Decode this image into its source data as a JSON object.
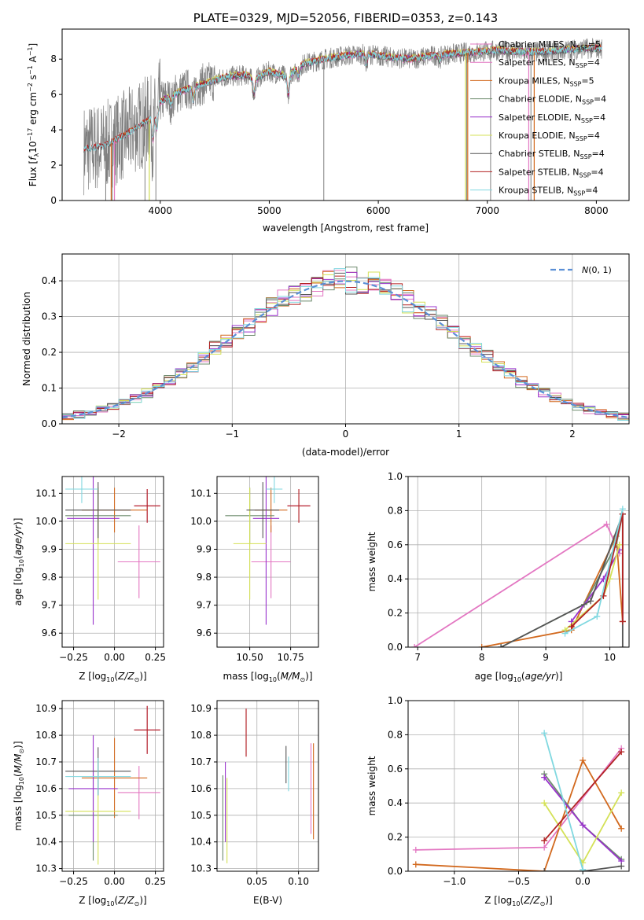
{
  "colors": {
    "Chabrier MILES": "#e377c2",
    "Salpeter MILES": "#e377c2",
    "Kroupa MILES": "#d2691e",
    "Chabrier ELODIE": "#6e8b6e",
    "Salpeter ELODIE": "#9932cc",
    "Kroupa ELODIE": "#d4e157",
    "Chabrier STELIB": "#555555",
    "Salpeter STELIB": "#b22222",
    "Kroupa STELIB": "#80d8e0",
    "data": "#808080",
    "normal": "#5b8fd6"
  },
  "chart_data": [
    {
      "id": "spectrum",
      "type": "line",
      "title": "PLATE=0329, MJD=52056, FIBERID=0353, z=0.143",
      "xlabel": "wavelength [Angstrom, rest frame]",
      "ylabel": "Flux [f_λ 10^-17 erg cm^-2 s^-1 A^-1]",
      "xlim": [
        3100,
        8300
      ],
      "ylim": [
        0,
        9.7
      ],
      "xticks": [
        "4000",
        "5000",
        "6000",
        "7000",
        "8000"
      ],
      "yticks": [
        "0",
        "2",
        "4",
        "6",
        "8"
      ],
      "legend_position": "top-right",
      "legend": [
        {
          "label": "Chabrier MILES, N_SSP=5",
          "base": "Chabrier MILES",
          "sub": "SSP",
          "tail": "=5"
        },
        {
          "label": "Salpeter MILES, N_SSP=4",
          "base": "Salpeter MILES",
          "sub": "SSP",
          "tail": "=4"
        },
        {
          "label": "Kroupa MILES, N_SSP=5",
          "base": "Kroupa MILES",
          "sub": "SSP",
          "tail": "=5"
        },
        {
          "label": "Chabrier ELODIE, N_SSP=4",
          "base": "Chabrier ELODIE",
          "sub": "SSP",
          "tail": "=4"
        },
        {
          "label": "Salpeter ELODIE, N_SSP=4",
          "base": "Salpeter ELODIE",
          "sub": "SSP",
          "tail": "=4"
        },
        {
          "label": "Kroupa ELODIE, N_SSP=4",
          "base": "Kroupa ELODIE",
          "sub": "SSP",
          "tail": "=4"
        },
        {
          "label": "Chabrier STELIB, N_SSP=4",
          "base": "Chabrier STELIB",
          "sub": "SSP",
          "tail": "=4"
        },
        {
          "label": "Salpeter STELIB, N_SSP=4",
          "base": "Salpeter STELIB",
          "sub": "SSP",
          "tail": "=4"
        },
        {
          "label": "Kroupa STELIB, N_SSP=4",
          "base": "Kroupa STELIB",
          "sub": "SSP",
          "tail": "=4"
        }
      ],
      "continuum": {
        "x": [
          3300,
          3500,
          3700,
          3900,
          4000,
          4200,
          4400,
          4600,
          4800,
          4850,
          5000,
          5170,
          5300,
          5500,
          5700,
          5900,
          6100,
          6300,
          6500,
          6700,
          6900,
          7100,
          7300,
          7500,
          7700,
          7900,
          8050
        ],
        "y": [
          2.9,
          3.1,
          3.8,
          4.6,
          5.6,
          6.2,
          6.6,
          7.0,
          7.1,
          6.8,
          7.3,
          7.0,
          7.7,
          8.0,
          8.2,
          8.3,
          8.1,
          8.0,
          8.2,
          8.3,
          8.4,
          8.5,
          8.4,
          8.4,
          8.5,
          8.6,
          8.6
        ]
      },
      "dips": [
        {
          "x": 3934,
          "depth": 1.5
        },
        {
          "x": 3969,
          "depth": 1.2
        },
        {
          "x": 4101,
          "depth": 0.5
        },
        {
          "x": 4304,
          "depth": 0.8
        },
        {
          "x": 4861,
          "depth": 0.8
        },
        {
          "x": 5175,
          "depth": 1.0
        },
        {
          "x": 5270,
          "depth": 0.5
        },
        {
          "x": 5890,
          "depth": 0.6
        },
        {
          "x": 6563,
          "depth": 0.3
        }
      ],
      "data_drop_lines": [
        3500,
        3560,
        3860,
        3900,
        3960,
        5500,
        6810,
        7030,
        7400
      ],
      "model_drop_lines": [
        {
          "model": "Kroupa MILES",
          "x": [
            3550,
            6820,
            7430
          ]
        },
        {
          "model": "Kroupa ELODIE",
          "x": [
            3900,
            6800
          ]
        },
        {
          "model": "Chabrier MILES",
          "x": [
            3580,
            7380
          ]
        }
      ]
    },
    {
      "id": "residuals",
      "type": "histogram",
      "xlabel": "(data-model)/error",
      "ylabel": "Normed distribution",
      "xlim": [
        -2.5,
        2.5
      ],
      "ylim": [
        0,
        0.475
      ],
      "xticks": [
        "−2",
        "−1",
        "0",
        "1",
        "2"
      ],
      "yticks": [
        "0.0",
        "0.1",
        "0.2",
        "0.3",
        "0.4"
      ],
      "grid": true,
      "legend_position": "top-right",
      "normal_curve": {
        "label": "N(0,1)",
        "mean": 0,
        "sigma": 1
      },
      "bin_width": 0.1,
      "jitter": [
        0.03,
        -0.02,
        0.04,
        -0.05,
        0.01,
        0.05,
        -0.03,
        0.02,
        -0.04,
        0.06,
        -0.01,
        0.03,
        -0.06,
        0.02,
        0.05,
        -0.02,
        0.04,
        -0.05,
        0.03,
        -0.03,
        0.01,
        0.06,
        -0.04,
        0.02
      ]
    },
    {
      "id": "age-vs-Z",
      "type": "errorbar",
      "xlabel": "Z [log10(Z/Z☉)]",
      "ylabel": "age [log10(age/yr)]",
      "xlim": [
        -0.32,
        0.3
      ],
      "ylim": [
        9.55,
        10.16
      ],
      "xticks": [
        "−0.25",
        "0.00",
        "0.25"
      ],
      "yticks": [
        "9.6",
        "9.7",
        "9.8",
        "9.9",
        "10.0",
        "10.1"
      ],
      "grid": true,
      "points": [
        {
          "model": "Chabrier MILES",
          "x": 0.15,
          "y": 9.855,
          "dx": 0.13,
          "dy": 0.13
        },
        {
          "model": "Salpeter MILES",
          "x": 0.2,
          "y": 10.055,
          "dx": 0.08,
          "dy": 0.06
        },
        {
          "model": "Kroupa MILES",
          "x": 0.0,
          "y": 10.04,
          "dx": 0.2,
          "dy": 0.08
        },
        {
          "model": "Chabrier ELODIE",
          "x": -0.1,
          "y": 10.02,
          "dx": 0.2,
          "dy": 0.1
        },
        {
          "model": "Salpeter ELODIE",
          "x": -0.13,
          "y": 10.01,
          "dx": 0.16,
          "dy": 0.38
        },
        {
          "model": "Kroupa ELODIE",
          "x": -0.1,
          "y": 9.92,
          "dx": 0.2,
          "dy": 0.2
        },
        {
          "model": "Chabrier STELIB",
          "x": -0.1,
          "y": 10.04,
          "dx": 0.2,
          "dy": 0.1
        },
        {
          "model": "Salpeter STELIB",
          "x": 0.2,
          "y": 10.055,
          "dx": 0.08,
          "dy": 0.06
        },
        {
          "model": "Kroupa STELIB",
          "x": -0.2,
          "y": 10.115,
          "dx": 0.1,
          "dy": 0.05
        }
      ]
    },
    {
      "id": "age-vs-mass",
      "type": "errorbar",
      "xlabel": "mass [log10(M/M☉)]",
      "ylabel": "",
      "xlim": [
        10.3,
        10.92
      ],
      "ylim": [
        9.55,
        10.16
      ],
      "xticks": [
        "10.50",
        "10.75"
      ],
      "yticks": [
        "9.6",
        "9.7",
        "9.8",
        "9.9",
        "10.0",
        "10.1"
      ],
      "grid": true,
      "points": [
        {
          "model": "Chabrier MILES",
          "x": 10.63,
          "y": 9.855,
          "dx": 0.12,
          "dy": 0.13
        },
        {
          "model": "Salpeter MILES",
          "x": 10.8,
          "y": 10.055,
          "dx": 0.07,
          "dy": 0.06
        },
        {
          "model": "Kroupa MILES",
          "x": 10.63,
          "y": 10.04,
          "dx": 0.1,
          "dy": 0.08
        },
        {
          "model": "Chabrier ELODIE",
          "x": 10.5,
          "y": 10.02,
          "dx": 0.15,
          "dy": 0.1
        },
        {
          "model": "Salpeter ELODIE",
          "x": 10.6,
          "y": 10.01,
          "dx": 0.08,
          "dy": 0.38
        },
        {
          "model": "Kroupa ELODIE",
          "x": 10.5,
          "y": 9.92,
          "dx": 0.1,
          "dy": 0.2
        },
        {
          "model": "Chabrier STELIB",
          "x": 10.58,
          "y": 10.04,
          "dx": 0.1,
          "dy": 0.1
        },
        {
          "model": "Salpeter STELIB",
          "x": 10.8,
          "y": 10.055,
          "dx": 0.07,
          "dy": 0.06
        },
        {
          "model": "Kroupa STELIB",
          "x": 10.65,
          "y": 10.115,
          "dx": 0.05,
          "dy": 0.05
        }
      ]
    },
    {
      "id": "massweight-vs-age",
      "type": "line",
      "xlabel": "age [log10(age/yr)]",
      "ylabel": "mass weight",
      "xlim": [
        6.85,
        10.3
      ],
      "ylim": [
        0,
        1.0
      ],
      "xticks": [
        "7",
        "8",
        "9",
        "10"
      ],
      "yticks": [
        "0.0",
        "0.2",
        "0.4",
        "0.6",
        "0.8",
        "1.0"
      ],
      "grid": true,
      "series": [
        {
          "model": "Chabrier MILES",
          "x": [
            6.95,
            9.95,
            10.15
          ],
          "y": [
            0.0,
            0.72,
            0.55
          ]
        },
        {
          "model": "Kroupa MILES",
          "x": [
            8.0,
            9.4,
            10.1,
            10.2
          ],
          "y": [
            0.0,
            0.1,
            0.65,
            0.15
          ]
        },
        {
          "model": "Chabrier ELODIE",
          "x": [
            8.3,
            9.6,
            10.1,
            10.2
          ],
          "y": [
            0.0,
            0.25,
            0.6,
            0.78
          ]
        },
        {
          "model": "Salpeter ELODIE",
          "x": [
            9.4,
            9.9,
            10.15
          ],
          "y": [
            0.15,
            0.4,
            0.57
          ]
        },
        {
          "model": "Kroupa ELODIE",
          "x": [
            9.3,
            9.9,
            10.0,
            10.15
          ],
          "y": [
            0.1,
            0.3,
            0.4,
            0.6
          ]
        },
        {
          "model": "Chabrier STELIB",
          "x": [
            8.3,
            9.7,
            10.2,
            10.2
          ],
          "y": [
            0.0,
            0.27,
            0.78,
            0.0
          ]
        },
        {
          "model": "Salpeter STELIB",
          "x": [
            9.4,
            9.9,
            10.2,
            10.2
          ],
          "y": [
            0.12,
            0.3,
            0.78,
            0.15
          ]
        },
        {
          "model": "Kroupa STELIB",
          "x": [
            9.3,
            9.8,
            10.2
          ],
          "y": [
            0.08,
            0.18,
            0.81
          ]
        }
      ]
    },
    {
      "id": "mass-vs-Z",
      "type": "errorbar",
      "xlabel": "Z [log10(Z/Z☉)]",
      "ylabel": "mass [log10(M/M☉)]",
      "xlim": [
        -0.32,
        0.3
      ],
      "ylim": [
        10.29,
        10.93
      ],
      "xticks": [
        "−0.25",
        "0.00",
        "0.25"
      ],
      "yticks": [
        "10.3",
        "10.4",
        "10.5",
        "10.6",
        "10.7",
        "10.8",
        "10.9"
      ],
      "grid": true,
      "points": [
        {
          "model": "Chabrier MILES",
          "x": 0.15,
          "y": 10.585,
          "dx": 0.13,
          "dy": 0.1
        },
        {
          "model": "Salpeter MILES",
          "x": 0.2,
          "y": 10.82,
          "dx": 0.08,
          "dy": 0.09
        },
        {
          "model": "Kroupa MILES",
          "x": 0.0,
          "y": 10.64,
          "dx": 0.2,
          "dy": 0.15
        },
        {
          "model": "Chabrier ELODIE",
          "x": -0.13,
          "y": 10.5,
          "dx": 0.15,
          "dy": 0.17
        },
        {
          "model": "Salpeter ELODIE",
          "x": -0.13,
          "y": 10.6,
          "dx": 0.15,
          "dy": 0.2
        },
        {
          "model": "Kroupa ELODIE",
          "x": -0.1,
          "y": 10.515,
          "dx": 0.2,
          "dy": 0.2
        },
        {
          "model": "Chabrier STELIB",
          "x": -0.1,
          "y": 10.665,
          "dx": 0.2,
          "dy": 0.09
        },
        {
          "model": "Salpeter STELIB",
          "x": 0.2,
          "y": 10.82,
          "dx": 0.08,
          "dy": 0.09
        },
        {
          "model": "Kroupa STELIB",
          "x": -0.1,
          "y": 10.645,
          "dx": 0.2,
          "dy": 0.07
        }
      ]
    },
    {
      "id": "mass-vs-ebv",
      "type": "errorbar",
      "xlabel": "E(B-V)",
      "ylabel": "",
      "xlim": [
        0.002,
        0.124
      ],
      "ylim": [
        10.29,
        10.93
      ],
      "xticks": [
        "0.05",
        "0.10"
      ],
      "yticks": [
        "10.3",
        "10.4",
        "10.5",
        "10.6",
        "10.7",
        "10.8",
        "10.9"
      ],
      "grid": true,
      "points": [
        {
          "model": "Chabrier MILES",
          "x": 0.115,
          "y": 10.6,
          "dx": 0,
          "dy": 0.17
        },
        {
          "model": "Salpeter MILES",
          "x": 0.037,
          "y": 10.81,
          "dx": 0,
          "dy": 0.09
        },
        {
          "model": "Kroupa MILES",
          "x": 0.118,
          "y": 10.59,
          "dx": 0,
          "dy": 0.18
        },
        {
          "model": "Chabrier ELODIE",
          "x": 0.009,
          "y": 10.49,
          "dx": 0,
          "dy": 0.16
        },
        {
          "model": "Salpeter ELODIE",
          "x": 0.012,
          "y": 10.55,
          "dx": 0,
          "dy": 0.15
        },
        {
          "model": "Kroupa ELODIE",
          "x": 0.014,
          "y": 10.48,
          "dx": 0,
          "dy": 0.16
        },
        {
          "model": "Chabrier STELIB",
          "x": 0.085,
          "y": 10.69,
          "dx": 0,
          "dy": 0.07
        },
        {
          "model": "Salpeter STELIB",
          "x": 0.037,
          "y": 10.81,
          "dx": 0,
          "dy": 0.09
        },
        {
          "model": "Kroupa STELIB",
          "x": 0.088,
          "y": 10.655,
          "dx": 0,
          "dy": 0.065
        }
      ]
    },
    {
      "id": "massweight-vs-Z",
      "type": "line",
      "xlabel": "Z [log10(Z/Z☉)]",
      "ylabel": "mass weight",
      "xlim": [
        -1.36,
        0.36
      ],
      "ylim": [
        0,
        1.0
      ],
      "xticks": [
        "−1.0",
        "−0.5",
        "0.0"
      ],
      "yticks": [
        "0.0",
        "0.2",
        "0.4",
        "0.6",
        "0.8",
        "1.0"
      ],
      "grid": true,
      "series": [
        {
          "model": "Chabrier MILES",
          "x": [
            -1.3,
            -0.3,
            0.3
          ],
          "y": [
            0.125,
            0.14,
            0.72
          ]
        },
        {
          "model": "Kroupa MILES",
          "x": [
            -1.3,
            -0.3,
            0.0,
            0.3
          ],
          "y": [
            0.04,
            0.0,
            0.65,
            0.25
          ]
        },
        {
          "model": "Chabrier ELODIE",
          "x": [
            -0.3,
            0.0,
            0.3
          ],
          "y": [
            0.57,
            0.27,
            0.07
          ]
        },
        {
          "model": "Salpeter ELODIE",
          "x": [
            -0.3,
            0.0,
            0.3
          ],
          "y": [
            0.55,
            0.27,
            0.06
          ]
        },
        {
          "model": "Kroupa ELODIE",
          "x": [
            -0.3,
            0.0,
            0.3
          ],
          "y": [
            0.4,
            0.05,
            0.46
          ]
        },
        {
          "model": "Chabrier STELIB",
          "x": [
            -0.3,
            0.0,
            0.3
          ],
          "y": [
            0.0,
            0.0,
            0.03
          ]
        },
        {
          "model": "Salpeter STELIB",
          "x": [
            -0.3,
            0.3
          ],
          "y": [
            0.18,
            0.7
          ]
        },
        {
          "model": "Kroupa STELIB",
          "x": [
            -0.3,
            0.0
          ],
          "y": [
            0.81,
            0.01
          ]
        }
      ]
    }
  ]
}
